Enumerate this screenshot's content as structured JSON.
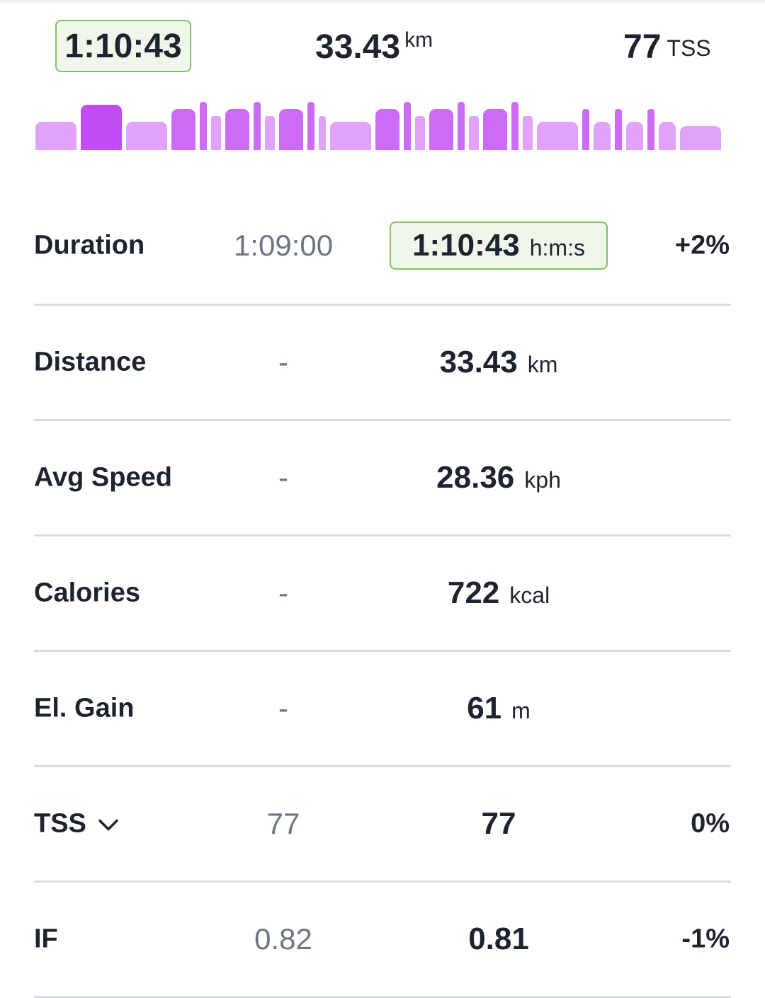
{
  "summary": {
    "duration": "1:10:43",
    "distance_value": "33.43",
    "distance_unit": "km",
    "tss_value": "77",
    "tss_unit": "TSS"
  },
  "interval_bars": {
    "colors": {
      "hard": "#c24cf6",
      "mid": "#cc6cf6",
      "easy": "#e1a2fb"
    },
    "bars": [
      {
        "w": 58,
        "h": 40,
        "i": "easy"
      },
      {
        "w": 58,
        "h": 64,
        "i": "hard"
      },
      {
        "w": 58,
        "h": 40,
        "i": "easy"
      },
      {
        "w": 34,
        "h": 58,
        "i": "mid"
      },
      {
        "w": 10,
        "h": 68,
        "i": "mid"
      },
      {
        "w": 14,
        "h": 48,
        "i": "easy"
      },
      {
        "w": 34,
        "h": 58,
        "i": "mid"
      },
      {
        "w": 10,
        "h": 68,
        "i": "mid"
      },
      {
        "w": 14,
        "h": 48,
        "i": "easy"
      },
      {
        "w": 34,
        "h": 58,
        "i": "mid"
      },
      {
        "w": 10,
        "h": 68,
        "i": "mid"
      },
      {
        "w": 10,
        "h": 48,
        "i": "easy"
      },
      {
        "w": 58,
        "h": 40,
        "i": "easy"
      },
      {
        "w": 34,
        "h": 58,
        "i": "mid"
      },
      {
        "w": 10,
        "h": 68,
        "i": "mid"
      },
      {
        "w": 14,
        "h": 48,
        "i": "easy"
      },
      {
        "w": 34,
        "h": 58,
        "i": "mid"
      },
      {
        "w": 10,
        "h": 68,
        "i": "mid"
      },
      {
        "w": 14,
        "h": 48,
        "i": "easy"
      },
      {
        "w": 34,
        "h": 58,
        "i": "mid"
      },
      {
        "w": 10,
        "h": 68,
        "i": "mid"
      },
      {
        "w": 14,
        "h": 48,
        "i": "easy"
      },
      {
        "w": 58,
        "h": 40,
        "i": "easy"
      },
      {
        "w": 10,
        "h": 58,
        "i": "mid"
      },
      {
        "w": 24,
        "h": 40,
        "i": "easy"
      },
      {
        "w": 10,
        "h": 58,
        "i": "mid"
      },
      {
        "w": 24,
        "h": 40,
        "i": "easy"
      },
      {
        "w": 10,
        "h": 58,
        "i": "mid"
      },
      {
        "w": 24,
        "h": 40,
        "i": "easy"
      },
      {
        "w": 58,
        "h": 34,
        "i": "easy"
      }
    ]
  },
  "rows": [
    {
      "label": "Duration",
      "planned": "1:09:00",
      "actual": "1:10:43",
      "unit": "h:m:s",
      "pct": "+2%",
      "highlight": true
    },
    {
      "label": "Distance",
      "planned": "-",
      "actual": "33.43",
      "unit": "km",
      "pct": ""
    },
    {
      "label": "Avg Speed",
      "planned": "-",
      "actual": "28.36",
      "unit": "kph",
      "pct": ""
    },
    {
      "label": "Calories",
      "planned": "-",
      "actual": "722",
      "unit": "kcal",
      "pct": ""
    },
    {
      "label": "El. Gain",
      "planned": "-",
      "actual": "61",
      "unit": "m",
      "pct": ""
    },
    {
      "label": "TSS",
      "planned": "77",
      "actual": "77",
      "unit": "",
      "pct": "0%",
      "dropdown": true
    },
    {
      "label": "IF",
      "planned": "0.82",
      "actual": "0.81",
      "unit": "",
      "pct": "-1%"
    }
  ],
  "icons": {
    "tss_dropdown": "chevron-down-icon"
  }
}
